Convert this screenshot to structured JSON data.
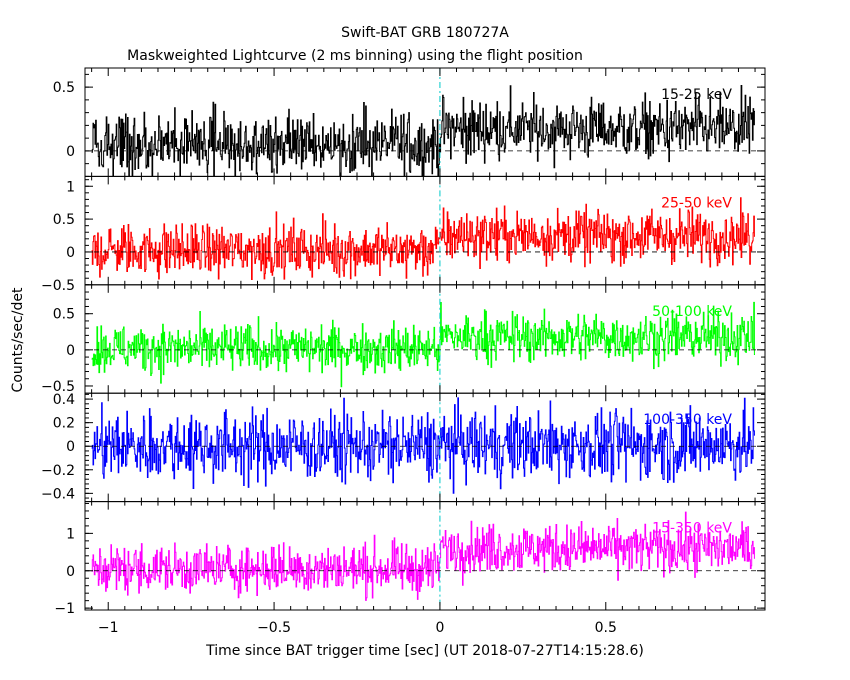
{
  "chart_data": {
    "type": "line",
    "title": "Swift-BAT GRB 180727A",
    "subtitle": "Maskweighted Lightcurve (2 ms binning) using the flight position",
    "xlabel": "Time since BAT trigger time [sec] (UT 2018-07-27T14:15:28.6)",
    "ylabel": "Counts/sec/det",
    "xlim": [
      -1.07,
      0.98
    ],
    "x_ticks": [
      -1,
      -0.5,
      0,
      0.5
    ],
    "x_tick_labels": [
      "−1",
      "−0.5",
      "0",
      "0.5"
    ],
    "x_range_data": [
      -1.05,
      0.95
    ],
    "trigger_marker_x": 0,
    "grid": false,
    "panels": [
      {
        "name": "15-25 keV",
        "color": "#000000",
        "ylim": [
          -0.2,
          0.65
        ],
        "y_ticks": [
          0,
          0.5
        ],
        "y_tick_labels": [
          "0",
          "0.5"
        ],
        "baseline": 0,
        "pre_trigger_mean": 0.05,
        "post_trigger_mean": 0.17,
        "noise_amplitude": 0.12
      },
      {
        "name": "25-50 keV",
        "color": "#ff0000",
        "ylim": [
          -0.5,
          1.15
        ],
        "y_ticks": [
          -0.5,
          0,
          0.5,
          1
        ],
        "y_tick_labels": [
          "−0.5",
          "0",
          "0.5",
          "1"
        ],
        "baseline": 0,
        "pre_trigger_mean": 0.03,
        "post_trigger_mean": 0.25,
        "noise_amplitude": 0.2
      },
      {
        "name": "50-100 keV",
        "color": "#00ff00",
        "ylim": [
          -0.6,
          0.9
        ],
        "y_ticks": [
          -0.5,
          0,
          0.5
        ],
        "y_tick_labels": [
          "−0.5",
          "0",
          "0.5"
        ],
        "baseline": 0,
        "pre_trigger_mean": 0.02,
        "post_trigger_mean": 0.18,
        "noise_amplitude": 0.17
      },
      {
        "name": "100-350 keV",
        "color": "#0000ff",
        "ylim": [
          -0.47,
          0.45
        ],
        "y_ticks": [
          -0.4,
          -0.2,
          0,
          0.2,
          0.4
        ],
        "y_tick_labels": [
          "−0.4",
          "−0.2",
          "0",
          "0.2",
          "0.4"
        ],
        "baseline": 0,
        "pre_trigger_mean": 0.0,
        "post_trigger_mean": 0.01,
        "noise_amplitude": 0.15
      },
      {
        "name": "15-350 keV",
        "color": "#ff00ff",
        "ylim": [
          -1.05,
          1.85
        ],
        "y_ticks": [
          -1,
          0,
          1
        ],
        "y_tick_labels": [
          "−1",
          "0",
          "1"
        ],
        "baseline": 0,
        "pre_trigger_mean": 0.05,
        "post_trigger_mean": 0.6,
        "noise_amplitude": 0.33
      }
    ]
  }
}
